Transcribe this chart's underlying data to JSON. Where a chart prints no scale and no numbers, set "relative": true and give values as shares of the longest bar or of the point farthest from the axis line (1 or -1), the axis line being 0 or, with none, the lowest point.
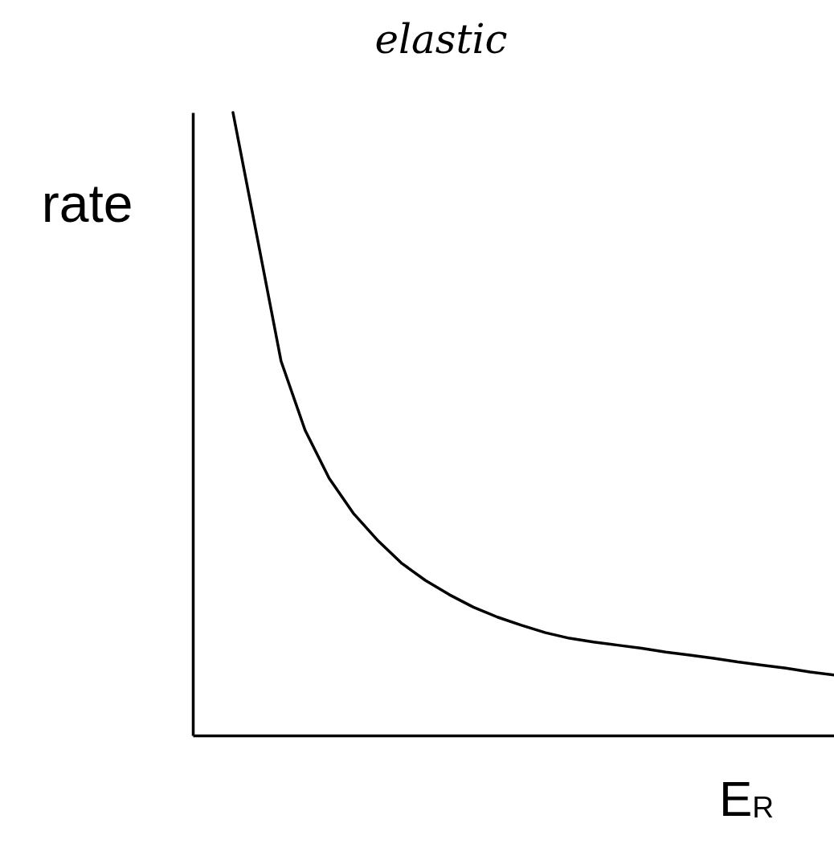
{
  "chart_data": {
    "type": "line",
    "title": "elastic",
    "xlabel": "E$_{R}$",
    "ylabel": "rate",
    "relative": true,
    "grid": false,
    "marker": "none",
    "line_style": "solid",
    "categories": [
      null,
      null,
      null,
      null,
      null,
      null,
      null,
      null,
      null,
      null,
      null,
      null,
      null,
      null,
      null,
      null,
      null,
      null,
      null,
      null,
      null,
      null,
      null,
      null,
      null,
      null
    ],
    "series": [
      {
        "color": "#000000",
        "values": [
          1,
          0.801,
          0.601,
          0.49,
          0.413,
          0.357,
          0.314,
          0.277,
          0.249,
          0.226,
          0.206,
          0.19,
          0.177,
          0.165,
          0.156,
          0.15,
          0.145,
          0.14,
          0.134,
          0.129,
          0.124,
          0.118,
          0.113,
          0.108,
          0.102,
          0.097
        ]
      }
    ]
  }
}
